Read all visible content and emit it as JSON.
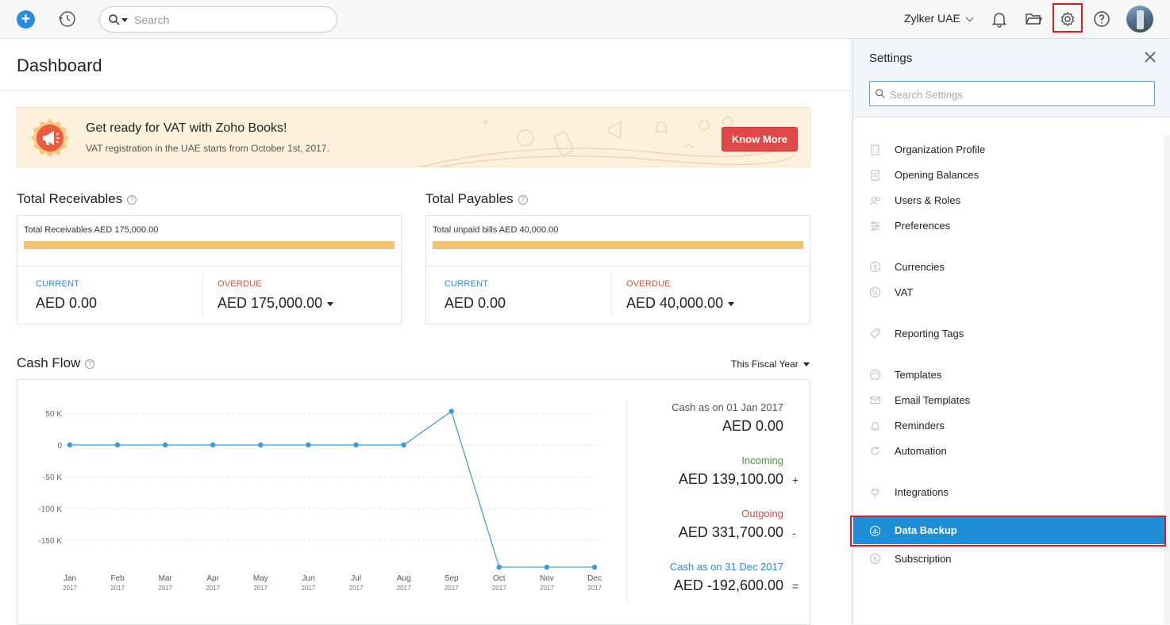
{
  "topbar": {
    "search_placeholder": "Search",
    "org_name": "Zylker UAE",
    "icons": [
      "plus-icon",
      "history-icon",
      "search-icon",
      "bell-icon",
      "folder-icon",
      "gear-icon",
      "help-icon",
      "avatar"
    ]
  },
  "page": {
    "title": "Dashboard"
  },
  "vat_banner": {
    "title": "Get ready for VAT with Zoho Books!",
    "subtitle": "VAT registration in the UAE starts from October 1st, 2017.",
    "button_label": "Know More"
  },
  "receivables": {
    "heading": "Total Receivables",
    "total_label": "Total Receivables AED 175,000.00",
    "current_label": "CURRENT",
    "current_amount": "AED 0.00",
    "overdue_label": "OVERDUE",
    "overdue_amount": "AED 175,000.00"
  },
  "payables": {
    "heading": "Total Payables",
    "total_label": "Total unpaid bills AED 40,000.00",
    "current_label": "CURRENT",
    "current_amount": "AED 0.00",
    "overdue_label": "OVERDUE",
    "overdue_amount": "AED 40,000.00"
  },
  "cash_flow": {
    "heading": "Cash Flow",
    "period_select": "This Fiscal Year",
    "opening_label": "Cash as on 01 Jan 2017",
    "opening_amount": "AED 0.00",
    "incoming_label": "Incoming",
    "incoming_amount": "AED 139,100.00",
    "incoming_op": "+",
    "outgoing_label": "Outgoing",
    "outgoing_amount": "AED 331,700.00",
    "outgoing_op": "-",
    "closing_label": "Cash as on 31 Dec 2017",
    "closing_amount": "AED -192,600.00",
    "closing_op": "="
  },
  "chart_data": {
    "type": "line",
    "categories": [
      "Jan",
      "Feb",
      "Mar",
      "Apr",
      "May",
      "Jun",
      "Jul",
      "Aug",
      "Sep",
      "Oct",
      "Nov",
      "Dec"
    ],
    "category_sublabel": "2017",
    "series": [
      {
        "values": [
          0,
          0,
          0,
          0,
          0,
          0,
          0,
          0,
          53000,
          -192600,
          -192600,
          -192600
        ]
      }
    ],
    "y_ticks": [
      {
        "value": 50000,
        "label": "50 K"
      },
      {
        "value": 0,
        "label": "0"
      },
      {
        "value": -50000,
        "label": "-50 K"
      },
      {
        "value": -100000,
        "label": "-100 K"
      },
      {
        "value": -150000,
        "label": "-150 K"
      }
    ],
    "ylim": [
      -192600,
      50000
    ],
    "color": "#3b9ad9",
    "grid": "horizontal dashed"
  },
  "settings": {
    "title": "Settings",
    "search_placeholder": "Search Settings",
    "items": [
      {
        "label": "Organization Profile",
        "icon": "building-icon"
      },
      {
        "label": "Opening Balances",
        "icon": "ledger-icon"
      },
      {
        "label": "Users & Roles",
        "icon": "users-icon"
      },
      {
        "label": "Preferences",
        "icon": "sliders-icon"
      },
      {
        "label": "Currencies",
        "icon": "currency-icon"
      },
      {
        "label": "VAT",
        "icon": "percent-icon"
      },
      {
        "label": "Reporting Tags",
        "icon": "tag-icon"
      },
      {
        "label": "Templates",
        "icon": "palette-icon"
      },
      {
        "label": "Email Templates",
        "icon": "mail-icon"
      },
      {
        "label": "Reminders",
        "icon": "bell-icon"
      },
      {
        "label": "Automation",
        "icon": "refresh-icon"
      },
      {
        "label": "Integrations",
        "icon": "plug-icon"
      },
      {
        "label": "Data Backup",
        "icon": "backup-icon",
        "active": true
      },
      {
        "label": "Subscription",
        "icon": "subscription-icon"
      }
    ]
  },
  "colors": {
    "accent": "#2a8ae5",
    "active_item": "#1e8fd6",
    "highlight_box": "#e0191a",
    "button_red": "#e0494a",
    "bar_yellow": "#f0c46f"
  }
}
